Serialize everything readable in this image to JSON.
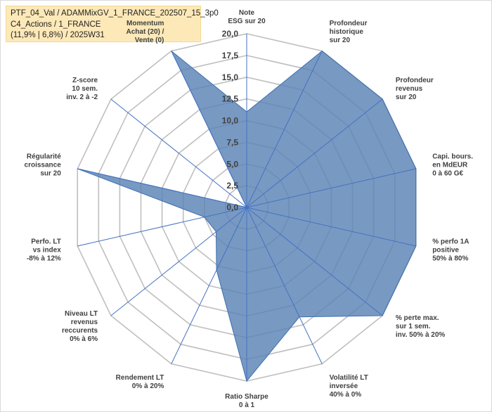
{
  "title_lines": [
    "PTF_04_Val / ADAMMixGV_1_FRANCE_202507_15_3p0",
    "C4_Actions / 1_FRANCE",
    "(11,9% | 6,8%) / 2025W31"
  ],
  "chart_data": {
    "type": "radar",
    "rmin": 0,
    "rmax": 20,
    "ticks": [
      "0,0",
      "2,5",
      "5,0",
      "7,5",
      "10,0",
      "12,5",
      "15,0",
      "17,5",
      "20,0"
    ],
    "grid": true,
    "colors": {
      "fill": "#5a83b4",
      "line": "#3d6fb0",
      "grid": "#bfbfbf",
      "spoke": "#4472c4"
    },
    "axes": [
      {
        "label": [
          "Note",
          "ESG sur 20"
        ],
        "value": 11
      },
      {
        "label": [
          "Profondeur",
          "historique",
          "sur 20"
        ],
        "value": 20
      },
      {
        "label": [
          "Profondeur",
          "revenus",
          "sur 20"
        ],
        "value": 20
      },
      {
        "label": [
          "Capi. bours.",
          "en MdEUR",
          "0 à 60 G€"
        ],
        "value": 20
      },
      {
        "label": [
          "% perfo 1A",
          "positive",
          "50% à 80%"
        ],
        "value": 20
      },
      {
        "label": [
          "% perte max.",
          "sur 1 sem.",
          "inv. 50% à 20%"
        ],
        "value": 20
      },
      {
        "label": [
          "Volatilité LT",
          "inversée",
          "40% à 0%"
        ],
        "value": 14
      },
      {
        "label": [
          "Ratio Sharpe",
          "0 à 1"
        ],
        "value": 20
      },
      {
        "label": [
          "Rendement LT",
          "0% à 20%"
        ],
        "value": 8
      },
      {
        "label": [
          "Niveau LT",
          "revenus",
          "reccurents",
          "0% à 6%"
        ],
        "value": 4.5
      },
      {
        "label": [
          "Perfo. LT",
          "vs index",
          "-8% à 12%"
        ],
        "value": 5
      },
      {
        "label": [
          "Régularité",
          "croissance",
          "sur 20"
        ],
        "value": 20
      },
      {
        "label": [
          "Z-score",
          "10 sem.",
          "inv. 2 à -2"
        ],
        "value": 0
      },
      {
        "label": [
          "Momentum",
          "Achat (20) /",
          "Vente (0)"
        ],
        "value": 20
      }
    ]
  }
}
